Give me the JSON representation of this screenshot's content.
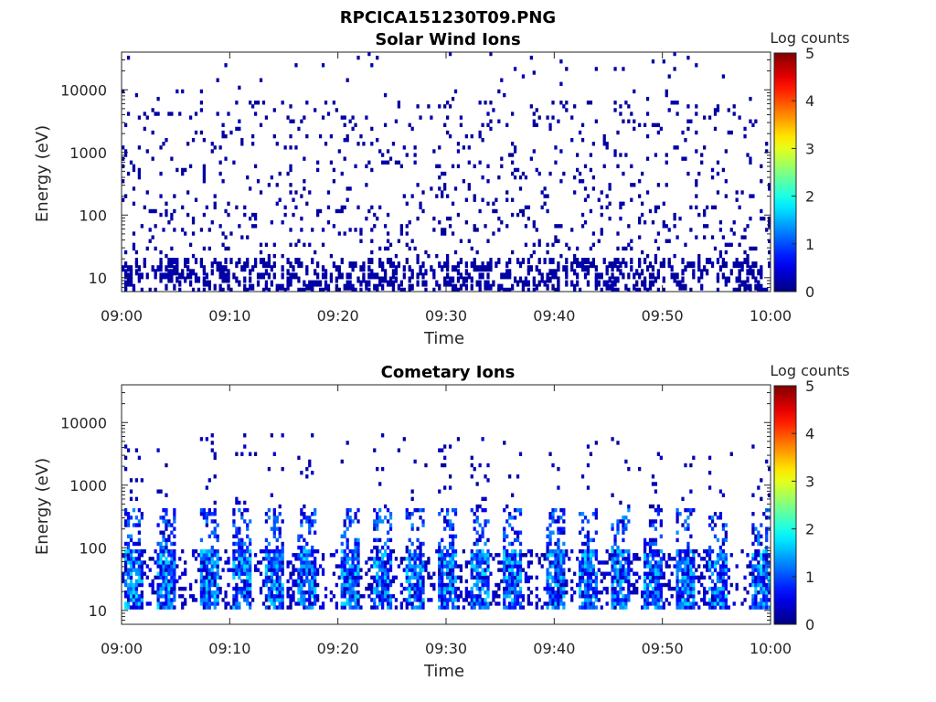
{
  "figure": {
    "title": "RPCICA151230T09.PNG"
  },
  "chart_data": [
    {
      "type": "heatmap",
      "title": "Solar Wind Ions",
      "xlabel": "Time",
      "ylabel": "Energy (eV)",
      "x_ticks": [
        "09:00",
        "09:10",
        "09:20",
        "09:30",
        "09:40",
        "09:50",
        "10:00"
      ],
      "x_range": [
        "09:00",
        "10:00"
      ],
      "y_scale": "log",
      "y_ticks": [
        10,
        100,
        1000,
        10000
      ],
      "y_tick_labels": [
        "10",
        "100",
        "1000",
        "10000"
      ],
      "ylim": [
        6,
        40000
      ],
      "colorbar": {
        "label": "Log counts",
        "min": 0,
        "max": 5,
        "ticks": [
          "0",
          "1",
          "2",
          "3",
          "4",
          "5"
        ]
      },
      "pattern": "sparse",
      "typical_log_counts": 0.1,
      "max_log_counts": 0.4
    },
    {
      "type": "heatmap",
      "title": "Cometary Ions",
      "xlabel": "Time",
      "ylabel": "Energy (eV)",
      "x_ticks": [
        "09:00",
        "09:10",
        "09:20",
        "09:30",
        "09:40",
        "09:50",
        "10:00"
      ],
      "x_range": [
        "09:00",
        "10:00"
      ],
      "y_scale": "log",
      "y_ticks": [
        10,
        100,
        1000,
        10000
      ],
      "y_tick_labels": [
        "10",
        "100",
        "1000",
        "10000"
      ],
      "ylim": [
        6,
        40000
      ],
      "colorbar": {
        "label": "Log counts",
        "min": 0,
        "max": 5,
        "ticks": [
          "0",
          "1",
          "2",
          "3",
          "4",
          "5"
        ]
      },
      "pattern": "periodic-bursts",
      "burst_times": [
        "09:01",
        "09:04",
        "09:08",
        "09:11",
        "09:14",
        "09:17",
        "09:21",
        "09:24",
        "09:27",
        "09:30",
        "09:33",
        "09:36",
        "09:40",
        "09:43",
        "09:46",
        "09:49",
        "09:52",
        "09:55",
        "09:59"
      ],
      "burst_energy_range_eV": [
        10,
        400
      ],
      "peak_log_counts": 2.0
    }
  ]
}
